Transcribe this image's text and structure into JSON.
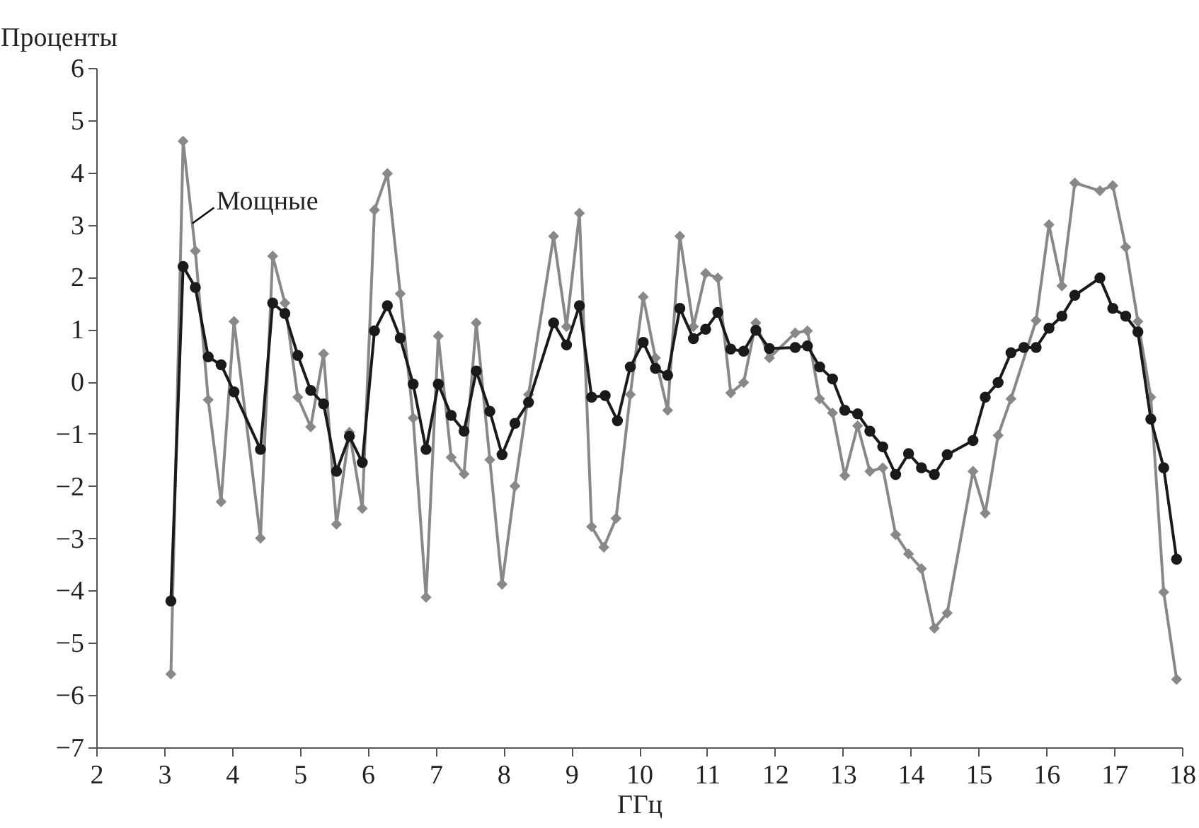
{
  "chart_data": {
    "type": "line",
    "xlabel": "ГГц",
    "ylabel": "Проценты",
    "xlim": [
      2,
      18
    ],
    "xticks": [
      2,
      3,
      4,
      5,
      6,
      7,
      8,
      9,
      10,
      11,
      12,
      13,
      14,
      15,
      16,
      17,
      18
    ],
    "ylim": [
      -7,
      6
    ],
    "yticks": [
      -7,
      -6,
      -5,
      -4,
      -3,
      -2,
      -1,
      0,
      1,
      2,
      3,
      4,
      5,
      6
    ],
    "grid": false,
    "legend": false,
    "line_style": "solid",
    "series": [
      {
        "name": "Мощные",
        "color": "#888888",
        "marker": "diamond",
        "x": [
          3.1,
          3.28,
          3.46,
          3.65,
          3.84,
          4.03,
          4.42,
          4.6,
          4.78,
          4.97,
          5.16,
          5.35,
          5.54,
          5.73,
          5.92,
          6.1,
          6.29,
          6.48,
          6.67,
          6.86,
          7.04,
          7.23,
          7.42,
          7.6,
          7.8,
          7.98,
          8.17,
          8.37,
          8.74,
          8.93,
          9.12,
          9.3,
          9.48,
          9.66,
          9.87,
          10.06,
          10.24,
          10.42,
          10.6,
          10.8,
          10.98,
          11.16,
          11.35,
          11.54,
          11.72,
          11.92,
          12.3,
          12.48,
          12.66,
          12.85,
          13.03,
          13.22,
          13.4,
          13.59,
          13.78,
          13.97,
          14.16,
          14.35,
          14.54,
          14.92,
          15.1,
          15.29,
          15.48,
          15.85,
          16.04,
          16.23,
          16.42,
          16.79,
          16.98,
          17.17,
          17.35,
          17.54,
          17.73,
          17.92
        ],
        "values": [
          -5.6,
          4.6,
          2.5,
          -0.35,
          -2.3,
          1.15,
          -3.0,
          2.4,
          1.5,
          -0.3,
          -0.87,
          0.53,
          -2.73,
          -0.97,
          -2.43,
          3.28,
          3.98,
          1.68,
          -0.7,
          -4.13,
          0.87,
          -1.45,
          -1.77,
          1.12,
          -1.5,
          -3.88,
          -2.0,
          -0.25,
          2.78,
          1.05,
          3.22,
          -2.78,
          -3.17,
          -2.62,
          -0.25,
          1.62,
          0.45,
          -0.55,
          2.78,
          1.05,
          2.07,
          1.98,
          -0.22,
          -0.02,
          1.12,
          0.45,
          0.93,
          0.97,
          -0.33,
          -0.6,
          -1.8,
          -0.85,
          -1.72,
          -1.65,
          -2.93,
          -3.3,
          -3.58,
          -4.72,
          -4.43,
          -1.72,
          -2.52,
          -1.03,
          -0.33,
          1.17,
          3.0,
          1.83,
          3.8,
          3.65,
          3.75,
          2.57,
          1.15,
          -0.3,
          -4.03,
          -5.7
        ]
      },
      {
        "color": "#1a1a1a",
        "marker": "circle",
        "x": [
          3.1,
          3.28,
          3.46,
          3.65,
          3.84,
          4.03,
          4.42,
          4.6,
          4.78,
          4.97,
          5.16,
          5.35,
          5.54,
          5.73,
          5.92,
          6.1,
          6.29,
          6.48,
          6.67,
          6.86,
          7.04,
          7.23,
          7.42,
          7.6,
          7.8,
          7.98,
          8.17,
          8.37,
          8.74,
          8.93,
          9.12,
          9.3,
          9.5,
          9.68,
          9.87,
          10.06,
          10.24,
          10.42,
          10.6,
          10.8,
          10.98,
          11.16,
          11.35,
          11.54,
          11.72,
          11.92,
          12.3,
          12.48,
          12.66,
          12.85,
          13.03,
          13.22,
          13.4,
          13.59,
          13.78,
          13.97,
          14.16,
          14.35,
          14.54,
          14.92,
          15.1,
          15.29,
          15.48,
          15.67,
          15.85,
          16.04,
          16.23,
          16.42,
          16.79,
          16.98,
          17.17,
          17.35,
          17.54,
          17.73,
          17.92
        ],
        "values": [
          -4.2,
          2.2,
          1.8,
          0.47,
          0.32,
          -0.2,
          -1.3,
          1.5,
          1.3,
          0.5,
          -0.17,
          -0.43,
          -1.72,
          -1.05,
          -1.55,
          0.97,
          1.45,
          0.83,
          -0.05,
          -1.3,
          -0.05,
          -0.65,
          -0.95,
          0.2,
          -0.57,
          -1.4,
          -0.8,
          -0.4,
          1.12,
          0.7,
          1.45,
          -0.3,
          -0.27,
          -0.75,
          0.28,
          0.75,
          0.25,
          0.12,
          1.4,
          0.82,
          1.0,
          1.32,
          0.62,
          0.58,
          0.98,
          0.63,
          0.65,
          0.68,
          0.28,
          0.05,
          -0.55,
          -0.62,
          -0.95,
          -1.25,
          -1.78,
          -1.38,
          -1.65,
          -1.78,
          -1.4,
          -1.13,
          -0.3,
          -0.02,
          0.55,
          0.65,
          0.65,
          1.02,
          1.25,
          1.65,
          1.98,
          1.4,
          1.25,
          0.95,
          -0.72,
          -1.65,
          -3.4
        ]
      }
    ]
  }
}
